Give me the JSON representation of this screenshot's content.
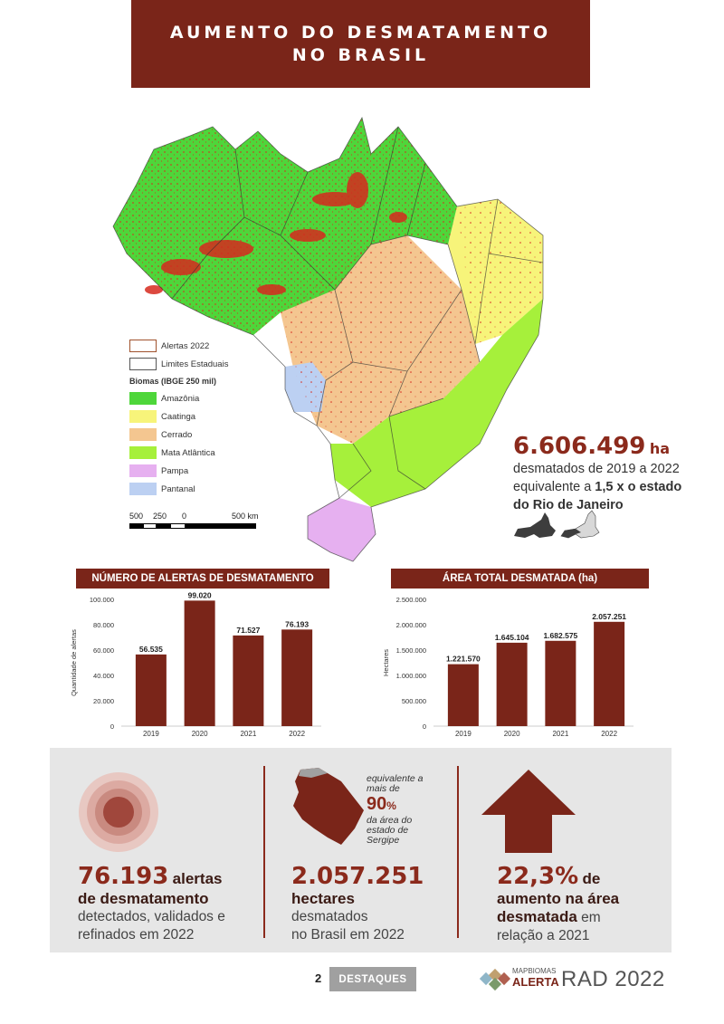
{
  "title": {
    "line1": "AUMENTO DO DESMATAMENTO",
    "line2": "NO BRASIL"
  },
  "legend": {
    "items_border": [
      {
        "label": "Alertas 2022",
        "color": "#a0522d"
      },
      {
        "label": "Limites Estaduais",
        "color": "#333333"
      }
    ],
    "heading": "Biomas (IBGE 250 mil)",
    "biomes": [
      {
        "label": "Amazônia",
        "color": "#4ed63a"
      },
      {
        "label": "Caatinga",
        "color": "#f7f47a"
      },
      {
        "label": "Cerrado",
        "color": "#f4c690"
      },
      {
        "label": "Mata Atlântica",
        "color": "#a6f03b"
      },
      {
        "label": "Pampa",
        "color": "#e6b0f0"
      },
      {
        "label": "Pantanal",
        "color": "#bcd0f2"
      }
    ]
  },
  "scale_bar": {
    "labels": [
      "500",
      "250",
      "0",
      "500 km"
    ]
  },
  "highlight": {
    "value": "6.606.499",
    "unit": "ha",
    "line1": "desmatados de 2019 a 2022",
    "line2_prefix": "equivalente a ",
    "line2_bold": "1,5 x o estado",
    "line3_bold": "do Rio de Janeiro"
  },
  "chart_data": [
    {
      "type": "bar",
      "title": "NÚMERO DE ALERTAS DE DESMATAMENTO",
      "ylabel": "Quantidade de alertas",
      "categories": [
        "2019",
        "2020",
        "2021",
        "2022"
      ],
      "values": [
        56535,
        99020,
        71527,
        76193
      ],
      "value_labels": [
        "56.535",
        "99.020",
        "71.527",
        "76.193"
      ],
      "ylim": [
        0,
        100000
      ],
      "yticks": [
        0,
        20000,
        40000,
        60000,
        80000,
        100000
      ],
      "ytick_labels": [
        "0",
        "20.000",
        "40.000",
        "60.000",
        "80.000",
        "100.000"
      ],
      "bar_color": "#7a2519"
    },
    {
      "type": "bar",
      "title": "ÁREA TOTAL DESMATADA (ha)",
      "ylabel": "Hectares",
      "categories": [
        "2019",
        "2020",
        "2021",
        "2022"
      ],
      "values": [
        1221570,
        1645104,
        1682575,
        2057251
      ],
      "value_labels": [
        "1.221.570",
        "1.645.104",
        "1.682.575",
        "2.057.251"
      ],
      "ylim": [
        0,
        2500000
      ],
      "yticks": [
        0,
        500000,
        1000000,
        1500000,
        2000000,
        2500000
      ],
      "ytick_labels": [
        "0",
        "500.000",
        "1.000.000",
        "1.500.000",
        "2.000.000",
        "2.500.000"
      ],
      "bar_color": "#7a2519"
    }
  ],
  "stats": {
    "alerts": {
      "value": "76.193",
      "unit": "alertas",
      "line2": "de desmatamento",
      "line3": "detectados, validados e",
      "line4": "refinados em 2022"
    },
    "hectares": {
      "value": "2.057.251",
      "line2": "hectares",
      "line3": "desmatados",
      "line4": "no Brasil em 2022",
      "note_line1": "equivalente a",
      "note_line2": "mais de",
      "note_pct": "90",
      "note_pct_sign": "%",
      "note_line3": "da área do",
      "note_line4": "estado de",
      "note_line5": "Sergipe"
    },
    "increase": {
      "value": "22,3%",
      "suffix": "de",
      "line2": "aumento na área",
      "line3": "desmatada",
      "line3_suffix": "em",
      "line4": "relação a 2021"
    }
  },
  "footer": {
    "page_number": "2",
    "section": "DESTAQUES",
    "logo_line1": "MAPBIOMAS",
    "logo_line2": "ALERTA",
    "report": "RAD 2022"
  },
  "colors": {
    "brand": "#7a2519",
    "accent": "#8b2a1c",
    "panel": "#e6e6e6"
  }
}
